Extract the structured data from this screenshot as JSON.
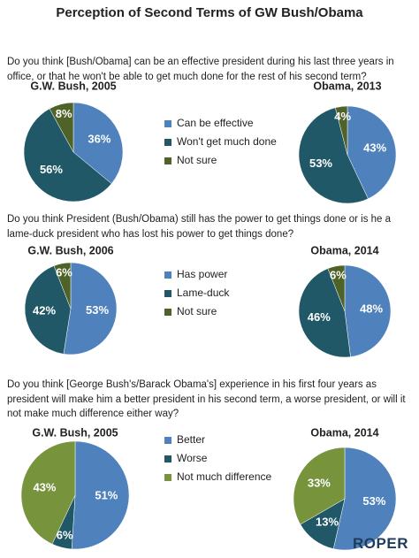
{
  "title": "Perception of Second Terms of GW Bush/Obama",
  "logo": "ROPER",
  "chart_data": [
    {
      "type": "pie",
      "subtitle": "Do you think [Bush/Obama] can be an effective president during his last three years in office, or that he won't be able to get much done for the rest of his second term?",
      "categories": [
        "Can be effective",
        "Won't get much done",
        "Not sure"
      ],
      "colors": [
        "#4f81bd",
        "#215868",
        "#4f6228"
      ],
      "series": [
        {
          "name": "G.W. Bush, 2005",
          "values": [
            36,
            56,
            8
          ],
          "value_labels": [
            "36%",
            "56%",
            "8%"
          ]
        },
        {
          "name": "Obama, 2013",
          "values": [
            43,
            53,
            4
          ],
          "value_labels": [
            "43%",
            "53%",
            "4%"
          ]
        }
      ]
    },
    {
      "type": "pie",
      "subtitle": "Do you think President (Bush/Obama) still has the power to get things done or is he a lame-duck president who has lost his power to get things done?",
      "categories": [
        "Has power",
        "Lame-duck",
        "Not sure"
      ],
      "colors": [
        "#4f81bd",
        "#215868",
        "#4f6228"
      ],
      "series": [
        {
          "name": "G.W. Bush, 2006",
          "values": [
            53,
            42,
            6
          ],
          "value_labels": [
            "53%",
            "42%",
            "6%"
          ]
        },
        {
          "name": "Obama, 2014",
          "values": [
            48,
            46,
            6
          ],
          "value_labels": [
            "48%",
            "46%",
            "6%"
          ]
        }
      ]
    },
    {
      "type": "pie",
      "subtitle": "Do you think [George Bush's/Barack Obama's] experience in his first four years as president will make him a better president in his second term, a worse president, or will it not make much difference either way?",
      "categories": [
        "Better",
        "Worse",
        "Not much difference"
      ],
      "colors": [
        "#4f81bd",
        "#215868",
        "#77933c"
      ],
      "series": [
        {
          "name": "G.W. Bush, 2005",
          "values": [
            51,
            6,
            43
          ],
          "value_labels": [
            "51%",
            "6%",
            "43%"
          ]
        },
        {
          "name": "Obama, 2014",
          "values": [
            53,
            13,
            33
          ],
          "value_labels": [
            "53%",
            "13%",
            "33%"
          ]
        }
      ]
    }
  ]
}
